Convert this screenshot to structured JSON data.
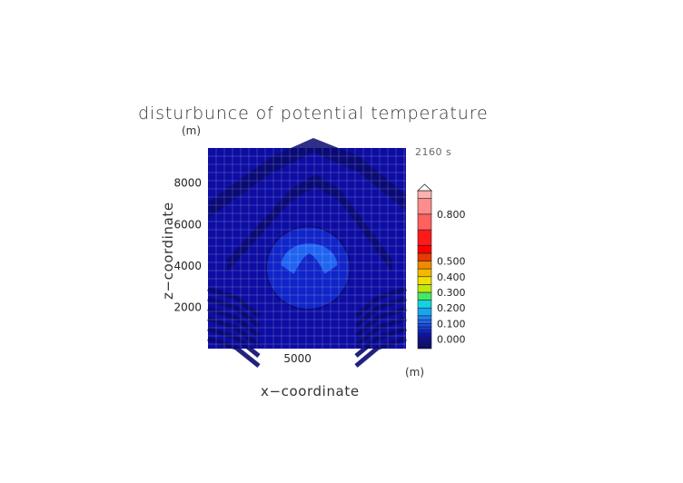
{
  "chart_data": {
    "type": "heatmap",
    "title": "disturbunce of potential temperature",
    "xlabel": "x−coordinate",
    "ylabel": "z−coordinate",
    "xunit": "(m)",
    "yunit": "(m)",
    "time_label": "2160 s",
    "xlim": [
      1000,
      9500
    ],
    "ylim": [
      0,
      9700
    ],
    "xticks": [
      {
        "value": 5000,
        "label": "5000"
      }
    ],
    "yticks": [
      {
        "value": 2000,
        "label": "2000"
      },
      {
        "value": 4000,
        "label": "4000"
      },
      {
        "value": 6000,
        "label": "6000"
      },
      {
        "value": 8000,
        "label": "8000"
      }
    ],
    "grid": true,
    "features": [
      {
        "shape": "ellipse",
        "cx": 5300,
        "cy": 3900,
        "rx": 1800,
        "ry": 2000,
        "level": 0.05
      },
      {
        "shape": "crescent",
        "cx": 5350,
        "cy": 4400,
        "rx": 1200,
        "ry": 1050,
        "level": 0.1
      }
    ],
    "colorbar": {
      "levels": [
        {
          "value": -0.06,
          "color": "#0a0a6e"
        },
        {
          "value": -0.04,
          "color": "#0b0b80"
        },
        {
          "value": -0.02,
          "color": "#0c0c92"
        },
        {
          "value": 0.0,
          "color": "#0d0da3"
        },
        {
          "value": 0.02,
          "color": "#0e12b5"
        },
        {
          "value": 0.04,
          "color": "#1025c8"
        },
        {
          "value": 0.06,
          "color": "#1438da"
        },
        {
          "value": 0.08,
          "color": "#1a4ee8"
        },
        {
          "value": 0.1,
          "color": "#1f63f0"
        },
        {
          "value": 0.125,
          "color": "#1f80f2"
        },
        {
          "value": 0.15,
          "color": "#18a5f0"
        },
        {
          "value": 0.2,
          "color": "#14d2e0"
        },
        {
          "value": 0.25,
          "color": "#44e866"
        },
        {
          "value": 0.3,
          "color": "#c0e610"
        },
        {
          "value": 0.35,
          "color": "#f0e000"
        },
        {
          "value": 0.4,
          "color": "#f5b800"
        },
        {
          "value": 0.45,
          "color": "#f08a00"
        },
        {
          "value": 0.5,
          "color": "#e63a00"
        },
        {
          "value": 0.55,
          "color": "#ff0000"
        },
        {
          "value": 0.6,
          "color": "#ff1a1a"
        },
        {
          "value": 0.7,
          "color": "#ff6060"
        },
        {
          "value": 0.8,
          "color": "#ff8c8c"
        },
        {
          "value": 0.9,
          "color": "#ffb0b0"
        }
      ],
      "tick_labels": [
        "0.000",
        "0.100",
        "0.200",
        "0.300",
        "0.400",
        "0.500",
        "0.800"
      ],
      "tick_values": [
        0.0,
        0.1,
        0.2,
        0.3,
        0.4,
        0.5,
        0.8
      ]
    }
  }
}
